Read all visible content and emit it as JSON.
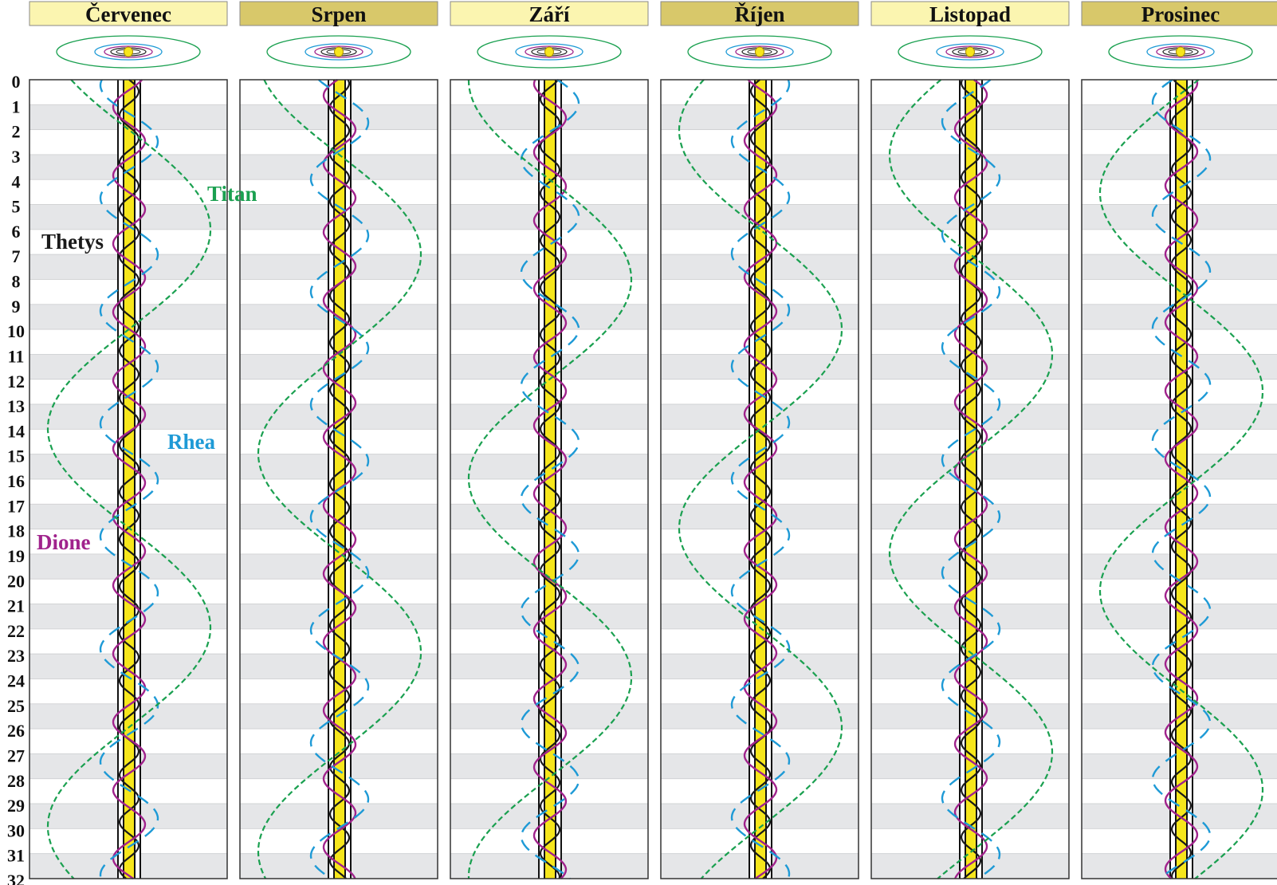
{
  "months": [
    {
      "label": "Červenec",
      "header_color": "#fbf5b0",
      "titan_phase_day": 6.0
    },
    {
      "label": "Srpen",
      "header_color": "#d8c86a",
      "titan_phase_day": 7.0
    },
    {
      "label": "Září",
      "header_color": "#fbf5b0",
      "titan_phase_day": 8.0
    },
    {
      "label": "Říjen",
      "header_color": "#d8c86a",
      "titan_phase_day": 10.0
    },
    {
      "label": "Listopad",
      "header_color": "#fbf5b0",
      "titan_phase_day": 11.0
    },
    {
      "label": "Prosinec",
      "header_color": "#d8c86a",
      "titan_phase_day": 12.5
    }
  ],
  "days": [
    "0",
    "1",
    "2",
    "3",
    "4",
    "5",
    "6",
    "7",
    "8",
    "9",
    "10",
    "11",
    "12",
    "13",
    "14",
    "15",
    "16",
    "17",
    "18",
    "19",
    "20",
    "21",
    "22",
    "23",
    "24",
    "25",
    "26",
    "27",
    "28",
    "29",
    "30",
    "31",
    "32"
  ],
  "moons": [
    {
      "name": "Thetys",
      "color": "#1a1a1a",
      "period_days": 1.888,
      "style": "solid"
    },
    {
      "name": "Dione",
      "color": "#a0238c",
      "period_days": 2.737,
      "style": "solid"
    },
    {
      "name": "Rhea",
      "color": "#1e9ad6",
      "period_days": 4.518,
      "style": "dashed"
    },
    {
      "name": "Titan",
      "color": "#1aa050",
      "period_days": 15.945,
      "style": "dashed"
    }
  ],
  "colors": {
    "planet": "#f6e61c",
    "stripe": "#e5e6e8",
    "frame": "#333333"
  }
}
